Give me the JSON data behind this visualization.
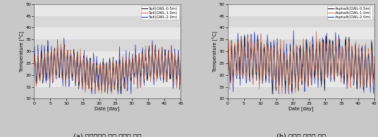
{
  "fig_width": 5.36,
  "fig_height": 1.95,
  "dpi": 100,
  "caption_a": "(a) 지하수위에 따른 증발량 비교",
  "caption_b": "(b) 포장층 증발량 영향",
  "bg_color": "#d8d8d8",
  "band_colors": [
    "#d8d8d8",
    "#e8e8e8"
  ],
  "plot_a": {
    "legend_labels": [
      "Soil(GWL-0.5m)",
      "Soil(GWL-1.0m)",
      "Soil(GWL-2.0m)"
    ],
    "legend_colors": [
      "#111111",
      "#cc6644",
      "#2233bb"
    ],
    "xlabel": "Date [day]",
    "ylabel": "Temperature [°C]",
    "xlim": [
      0,
      45
    ],
    "ylim": [
      10,
      50
    ],
    "yticks": [
      10,
      15,
      20,
      25,
      30,
      35,
      40,
      45,
      50
    ],
    "xticks": [
      0,
      5,
      10,
      15,
      20,
      25,
      30,
      35,
      40,
      45
    ],
    "seed_a": 10,
    "seed_b": 20,
    "seed_c": 30
  },
  "plot_b": {
    "legend_labels": [
      "Asphalt(GWL-0.5m)",
      "Asphalt(GWL-1.0m)",
      "Asphalt(GWL-2.0m)"
    ],
    "legend_colors": [
      "#111111",
      "#cc6644",
      "#2233bb"
    ],
    "xlabel": "Date [day]",
    "ylabel": "Temperature [°C]",
    "xlim": [
      0,
      45
    ],
    "ylim": [
      10,
      50
    ],
    "yticks": [
      10,
      15,
      20,
      25,
      30,
      35,
      40,
      45,
      50
    ],
    "xticks": [
      0,
      5,
      10,
      15,
      20,
      25,
      30,
      35,
      40,
      45
    ],
    "seed_a": 50,
    "seed_b": 60,
    "seed_c": 70
  }
}
